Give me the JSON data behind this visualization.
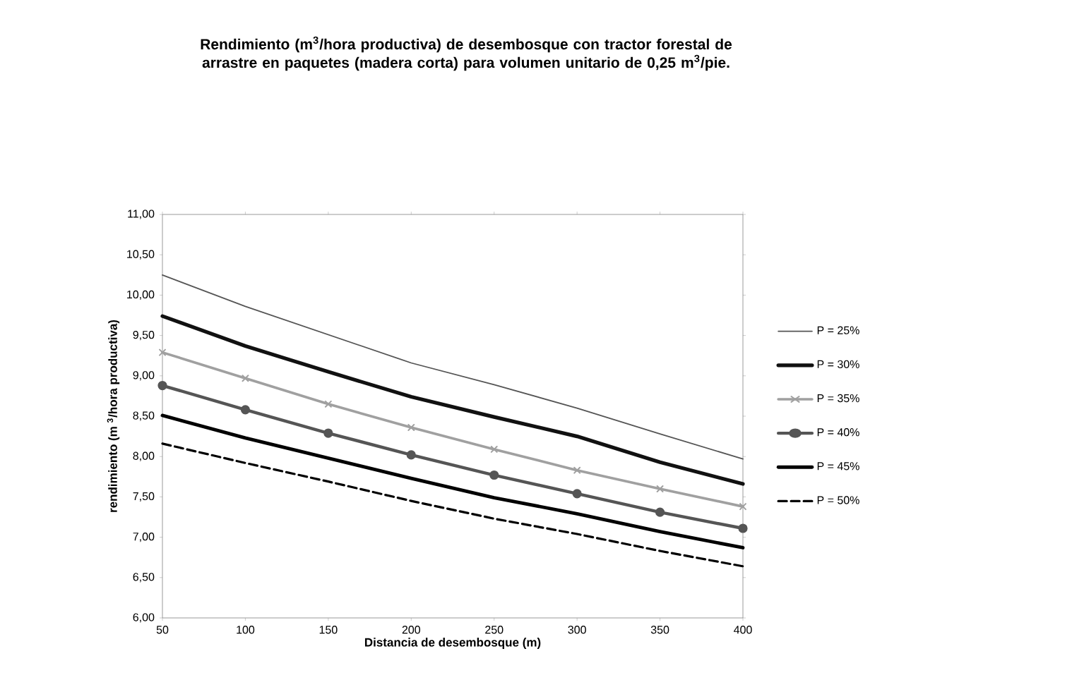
{
  "chart_data": {
    "type": "line",
    "title": "Rendimiento (m$^{3}$/hora productiva) de desembosque con tractor forestal de arrastre en paquetes (madera corta) para volumen unitario de 0,25 m$^{3}$/pie.",
    "xlabel": "Distancia de desembosque (m)",
    "ylabel": "rendimiento (m $^{3}$/hora productiva)",
    "x": [
      50,
      100,
      150,
      200,
      250,
      300,
      350,
      400
    ],
    "series": [
      {
        "name": "P = 25%",
        "color": "#555555",
        "values": [
          10.25,
          9.86,
          9.51,
          9.16,
          8.89,
          8.6,
          8.28,
          7.97
        ]
      },
      {
        "name": "P = 30%",
        "color": "#111111",
        "values": [
          9.74,
          9.37,
          9.05,
          8.74,
          8.49,
          8.25,
          7.93,
          7.66
        ]
      },
      {
        "name": "P = 35%",
        "color": "#a0a0a0",
        "marker": "cross",
        "values": [
          9.29,
          8.97,
          8.65,
          8.36,
          8.09,
          7.83,
          7.6,
          7.38
        ]
      },
      {
        "name": "P = 40%",
        "color": "#555555",
        "marker": "circle",
        "values": [
          8.88,
          8.58,
          8.29,
          8.02,
          7.77,
          7.54,
          7.31,
          7.11
        ]
      },
      {
        "name": "P = 45%",
        "color": "#000000",
        "values": [
          8.51,
          8.23,
          7.98,
          7.73,
          7.49,
          7.29,
          7.07,
          6.87
        ]
      },
      {
        "name": "P = 50%",
        "color": "#000000",
        "line_style": "dashed",
        "values": [
          8.16,
          7.92,
          7.69,
          7.45,
          7.23,
          7.04,
          6.83,
          6.64
        ]
      }
    ],
    "xlim": [
      50,
      400
    ],
    "xticks": [
      50,
      100,
      150,
      200,
      250,
      300,
      350,
      400
    ],
    "ylim": [
      6,
      11
    ],
    "yticks": [
      {
        "value": 6,
        "label": "6,00"
      },
      {
        "value": 6.5,
        "label": "6,50"
      },
      {
        "value": 7,
        "label": "7,00"
      },
      {
        "value": 7.5,
        "label": "7,50"
      },
      {
        "value": 8,
        "label": "8,00"
      },
      {
        "value": 8.5,
        "label": "8,50"
      },
      {
        "value": 9,
        "label": "9,00"
      },
      {
        "value": 9.5,
        "label": "9,50"
      },
      {
        "value": 10,
        "label": "10,00"
      },
      {
        "value": 10.5,
        "label": "10,50"
      },
      {
        "value": 11,
        "label": "11,00"
      }
    ],
    "grid": false,
    "legend": "right",
    "marker": "none",
    "line_style": "solid"
  }
}
